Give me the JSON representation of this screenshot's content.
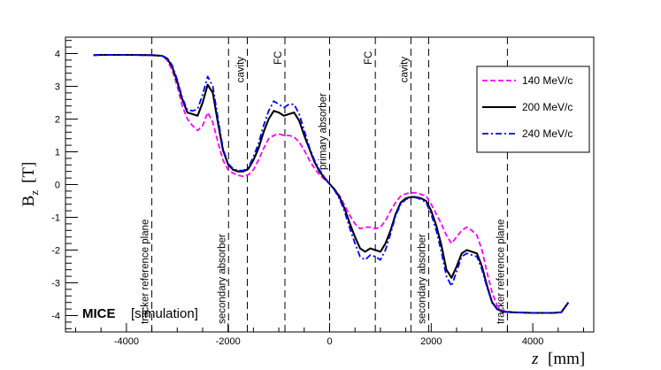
{
  "chart_data": {
    "type": "line",
    "title": "",
    "xlabel": "z",
    "xunit": "[mm]",
    "ylabel": "B",
    "ylabel_sub": "z",
    "yunit": "[T]",
    "xlim": [
      -5200,
      5200
    ],
    "ylim": [
      -4.5,
      4.5
    ],
    "xticks": [
      -4000,
      -2000,
      0,
      2000,
      4000
    ],
    "yticks": [
      -4,
      -3,
      -2,
      -1,
      0,
      1,
      2,
      3,
      4
    ],
    "xtick_labels": [
      "-4000",
      "-2000",
      "0",
      "2000",
      "4000"
    ],
    "ytick_labels": [
      "-4",
      "-3",
      "-2",
      "-1",
      "0",
      "1",
      "2",
      "3",
      "4"
    ],
    "grid": false,
    "legend_position": "top-right",
    "watermark": {
      "bold": "MICE",
      "normal": "[simulation]"
    },
    "markers": [
      {
        "x": -3500,
        "label": "tracker reference plane"
      },
      {
        "x": -1990,
        "label": "secondary absorber"
      },
      {
        "x": -1620,
        "label": "cavity"
      },
      {
        "x": -880,
        "label": "FC"
      },
      {
        "x": 0,
        "label": "primary absorber"
      },
      {
        "x": 900,
        "label": "FC"
      },
      {
        "x": 1600,
        "label": "cavity"
      },
      {
        "x": 1950,
        "label": "secondary absorber"
      },
      {
        "x": 3500,
        "label": "tracker reference plane"
      }
    ],
    "series": [
      {
        "name": "140 MeV/c",
        "color": "#ff00ff",
        "dash": "dashed",
        "points": [
          [
            -4650,
            3.95
          ],
          [
            -4500,
            3.96
          ],
          [
            -4000,
            3.96
          ],
          [
            -3500,
            3.95
          ],
          [
            -3300,
            3.93
          ],
          [
            -3200,
            3.8
          ],
          [
            -3100,
            3.5
          ],
          [
            -3000,
            3.0
          ],
          [
            -2900,
            2.4
          ],
          [
            -2800,
            2.0
          ],
          [
            -2700,
            1.8
          ],
          [
            -2600,
            1.65
          ],
          [
            -2500,
            1.8
          ],
          [
            -2400,
            2.2
          ],
          [
            -2300,
            1.9
          ],
          [
            -2200,
            1.3
          ],
          [
            -2100,
            0.75
          ],
          [
            -2000,
            0.45
          ],
          [
            -1900,
            0.35
          ],
          [
            -1800,
            0.28
          ],
          [
            -1700,
            0.25
          ],
          [
            -1600,
            0.3
          ],
          [
            -1500,
            0.45
          ],
          [
            -1400,
            0.75
          ],
          [
            -1300,
            1.1
          ],
          [
            -1200,
            1.4
          ],
          [
            -1100,
            1.5
          ],
          [
            -1000,
            1.55
          ],
          [
            -900,
            1.5
          ],
          [
            -800,
            1.5
          ],
          [
            -700,
            1.45
          ],
          [
            -600,
            1.3
          ],
          [
            -500,
            1.05
          ],
          [
            -400,
            0.75
          ],
          [
            -300,
            0.5
          ],
          [
            -200,
            0.3
          ],
          [
            -100,
            0.15
          ],
          [
            0,
            0.02
          ],
          [
            100,
            -0.15
          ],
          [
            200,
            -0.35
          ],
          [
            300,
            -0.65
          ],
          [
            400,
            -0.95
          ],
          [
            500,
            -1.2
          ],
          [
            600,
            -1.35
          ],
          [
            700,
            -1.3
          ],
          [
            800,
            -1.3
          ],
          [
            900,
            -1.35
          ],
          [
            1000,
            -1.3
          ],
          [
            1100,
            -1.1
          ],
          [
            1200,
            -0.8
          ],
          [
            1300,
            -0.55
          ],
          [
            1400,
            -0.35
          ],
          [
            1500,
            -0.28
          ],
          [
            1600,
            -0.25
          ],
          [
            1700,
            -0.25
          ],
          [
            1800,
            -0.3
          ],
          [
            1900,
            -0.35
          ],
          [
            2000,
            -0.6
          ],
          [
            2100,
            -0.9
          ],
          [
            2200,
            -1.2
          ],
          [
            2300,
            -1.55
          ],
          [
            2400,
            -1.8
          ],
          [
            2500,
            -1.6
          ],
          [
            2600,
            -1.4
          ],
          [
            2700,
            -1.3
          ],
          [
            2800,
            -1.4
          ],
          [
            2900,
            -1.55
          ],
          [
            3000,
            -2.0
          ],
          [
            3100,
            -2.7
          ],
          [
            3200,
            -3.3
          ],
          [
            3300,
            -3.7
          ],
          [
            3400,
            -3.85
          ],
          [
            3600,
            -3.9
          ],
          [
            4000,
            -3.92
          ],
          [
            4400,
            -3.92
          ],
          [
            4560,
            -3.9
          ],
          [
            4700,
            -3.6
          ]
        ]
      },
      {
        "name": "200 MeV/c",
        "color": "#000000",
        "dash": "solid",
        "points": [
          [
            -4650,
            3.95
          ],
          [
            -4500,
            3.96
          ],
          [
            -4000,
            3.96
          ],
          [
            -3500,
            3.95
          ],
          [
            -3300,
            3.93
          ],
          [
            -3200,
            3.85
          ],
          [
            -3100,
            3.6
          ],
          [
            -3000,
            3.15
          ],
          [
            -2900,
            2.6
          ],
          [
            -2800,
            2.2
          ],
          [
            -2700,
            2.15
          ],
          [
            -2600,
            2.1
          ],
          [
            -2500,
            2.5
          ],
          [
            -2400,
            3.05
          ],
          [
            -2300,
            2.8
          ],
          [
            -2200,
            1.9
          ],
          [
            -2100,
            1.05
          ],
          [
            -2000,
            0.62
          ],
          [
            -1900,
            0.45
          ],
          [
            -1800,
            0.4
          ],
          [
            -1700,
            0.4
          ],
          [
            -1600,
            0.48
          ],
          [
            -1500,
            0.75
          ],
          [
            -1400,
            1.1
          ],
          [
            -1300,
            1.6
          ],
          [
            -1200,
            2.0
          ],
          [
            -1100,
            2.25
          ],
          [
            -1000,
            2.2
          ],
          [
            -900,
            2.1
          ],
          [
            -800,
            2.15
          ],
          [
            -700,
            2.2
          ],
          [
            -600,
            1.95
          ],
          [
            -500,
            1.5
          ],
          [
            -400,
            1.1
          ],
          [
            -300,
            0.7
          ],
          [
            -200,
            0.4
          ],
          [
            -100,
            0.2
          ],
          [
            0,
            0.02
          ],
          [
            100,
            -0.15
          ],
          [
            200,
            -0.4
          ],
          [
            300,
            -0.75
          ],
          [
            400,
            -1.2
          ],
          [
            500,
            -1.6
          ],
          [
            600,
            -1.95
          ],
          [
            700,
            -2.05
          ],
          [
            800,
            -1.95
          ],
          [
            900,
            -2.0
          ],
          [
            1000,
            -2.05
          ],
          [
            1100,
            -1.8
          ],
          [
            1200,
            -1.4
          ],
          [
            1300,
            -0.9
          ],
          [
            1400,
            -0.55
          ],
          [
            1500,
            -0.42
          ],
          [
            1600,
            -0.38
          ],
          [
            1700,
            -0.38
          ],
          [
            1800,
            -0.42
          ],
          [
            1900,
            -0.5
          ],
          [
            2000,
            -0.8
          ],
          [
            2100,
            -1.25
          ],
          [
            2200,
            -1.85
          ],
          [
            2300,
            -2.6
          ],
          [
            2400,
            -2.85
          ],
          [
            2500,
            -2.5
          ],
          [
            2600,
            -2.1
          ],
          [
            2700,
            -2.0
          ],
          [
            2800,
            -2.05
          ],
          [
            2900,
            -2.1
          ],
          [
            3000,
            -2.5
          ],
          [
            3100,
            -3.1
          ],
          [
            3200,
            -3.6
          ],
          [
            3300,
            -3.8
          ],
          [
            3400,
            -3.88
          ],
          [
            3600,
            -3.9
          ],
          [
            4000,
            -3.92
          ],
          [
            4400,
            -3.92
          ],
          [
            4560,
            -3.9
          ],
          [
            4700,
            -3.6
          ]
        ]
      },
      {
        "name": "240 MeV/c",
        "color": "#0000ff",
        "dash": "dashdot",
        "points": [
          [
            -4650,
            3.95
          ],
          [
            -4500,
            3.96
          ],
          [
            -4000,
            3.96
          ],
          [
            -3500,
            3.95
          ],
          [
            -3300,
            3.93
          ],
          [
            -3200,
            3.87
          ],
          [
            -3100,
            3.65
          ],
          [
            -3000,
            3.2
          ],
          [
            -2900,
            2.65
          ],
          [
            -2800,
            2.28
          ],
          [
            -2700,
            2.25
          ],
          [
            -2600,
            2.3
          ],
          [
            -2500,
            2.75
          ],
          [
            -2400,
            3.3
          ],
          [
            -2300,
            3.0
          ],
          [
            -2200,
            2.05
          ],
          [
            -2100,
            1.1
          ],
          [
            -2000,
            0.65
          ],
          [
            -1900,
            0.48
          ],
          [
            -1800,
            0.43
          ],
          [
            -1700,
            0.43
          ],
          [
            -1600,
            0.52
          ],
          [
            -1500,
            0.85
          ],
          [
            -1400,
            1.25
          ],
          [
            -1300,
            1.8
          ],
          [
            -1200,
            2.25
          ],
          [
            -1100,
            2.55
          ],
          [
            -1000,
            2.45
          ],
          [
            -900,
            2.35
          ],
          [
            -800,
            2.45
          ],
          [
            -700,
            2.45
          ],
          [
            -600,
            2.15
          ],
          [
            -500,
            1.65
          ],
          [
            -400,
            1.15
          ],
          [
            -300,
            0.75
          ],
          [
            -200,
            0.45
          ],
          [
            -100,
            0.22
          ],
          [
            0,
            0.02
          ],
          [
            100,
            -0.18
          ],
          [
            200,
            -0.45
          ],
          [
            300,
            -0.85
          ],
          [
            400,
            -1.35
          ],
          [
            500,
            -1.8
          ],
          [
            600,
            -2.2
          ],
          [
            700,
            -2.3
          ],
          [
            800,
            -2.15
          ],
          [
            900,
            -2.2
          ],
          [
            1000,
            -2.3
          ],
          [
            1100,
            -2.0
          ],
          [
            1200,
            -1.5
          ],
          [
            1300,
            -0.95
          ],
          [
            1400,
            -0.6
          ],
          [
            1500,
            -0.45
          ],
          [
            1600,
            -0.4
          ],
          [
            1700,
            -0.4
          ],
          [
            1800,
            -0.45
          ],
          [
            1900,
            -0.55
          ],
          [
            2000,
            -0.9
          ],
          [
            2100,
            -1.4
          ],
          [
            2200,
            -2.05
          ],
          [
            2300,
            -2.8
          ],
          [
            2400,
            -3.1
          ],
          [
            2500,
            -2.65
          ],
          [
            2600,
            -2.2
          ],
          [
            2700,
            -2.1
          ],
          [
            2800,
            -2.15
          ],
          [
            2900,
            -2.2
          ],
          [
            3000,
            -2.6
          ],
          [
            3100,
            -3.15
          ],
          [
            3200,
            -3.6
          ],
          [
            3300,
            -3.82
          ],
          [
            3400,
            -3.88
          ],
          [
            3600,
            -3.9
          ],
          [
            4000,
            -3.92
          ],
          [
            4400,
            -3.92
          ],
          [
            4560,
            -3.9
          ],
          [
            4700,
            -3.6
          ]
        ]
      }
    ]
  }
}
